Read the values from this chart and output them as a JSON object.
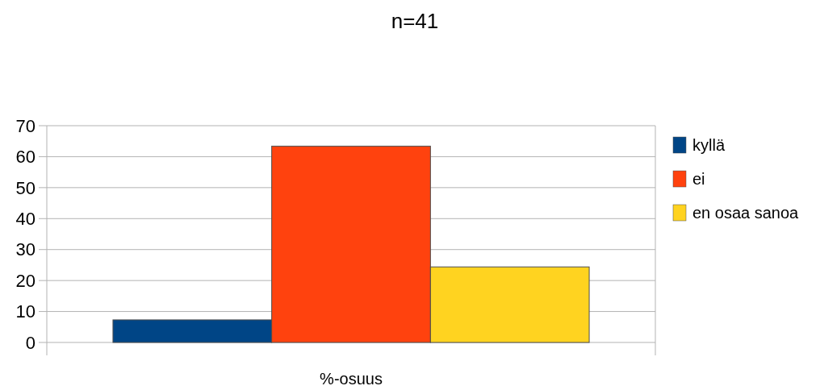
{
  "chart_data": {
    "type": "bar",
    "title": "n=41",
    "categories": [
      "%-osuus"
    ],
    "series": [
      {
        "name": "kyllä",
        "color": "#004586",
        "values": [
          7.3
        ]
      },
      {
        "name": "ei",
        "color": "#ff420e",
        "values": [
          63.4
        ]
      },
      {
        "name": "en osaa sanoa",
        "color": "#ffd320",
        "values": [
          24.4
        ]
      }
    ],
    "ylim": [
      0,
      70
    ],
    "yticks": [
      0,
      10,
      20,
      30,
      40,
      50,
      60,
      70
    ],
    "grid": "y",
    "legend": "right"
  }
}
